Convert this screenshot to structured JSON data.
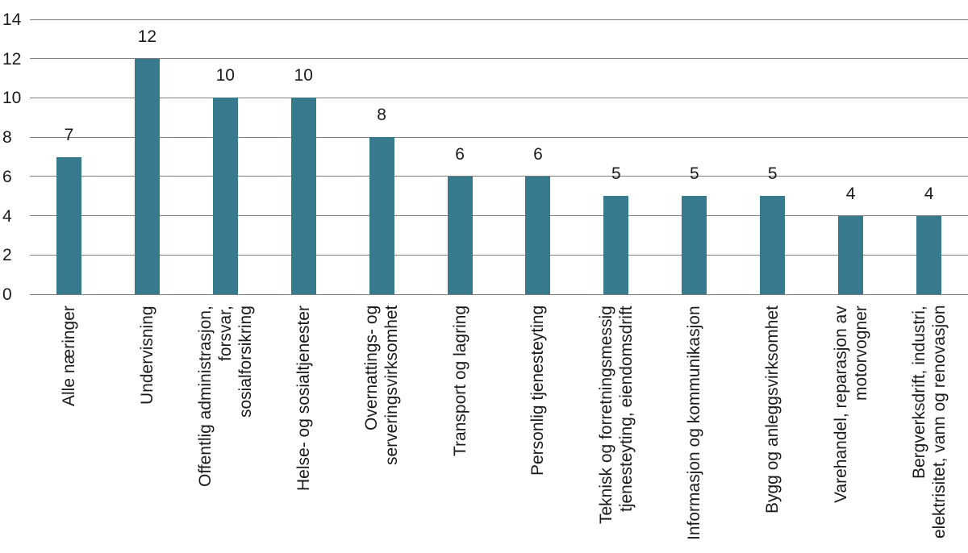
{
  "chart_data": {
    "type": "bar",
    "title": "",
    "xlabel": "",
    "ylabel": "",
    "categories": [
      "Alle næringer",
      "Undervisning",
      "Offentlig administrasjon, forsvar,\nsosialforsikring",
      "Helse- og sosialtjenester",
      "Overnattings- og\nserveringsvirksomhet",
      "Transport og lagring",
      "Personlig tjenesteyting",
      "Teknisk og forretningsmessig\ntjenesteyting, eiendomsdrift",
      "Informasjon og kommunikasjon",
      "Bygg og anleggsvirksomhet",
      "Varehandel, reparasjon av\nmotorvogner",
      "Bergverksdrift, industri,\nelektrisitet, vann og renovasjon"
    ],
    "values": [
      7,
      12,
      10,
      10,
      8,
      6,
      6,
      5,
      5,
      5,
      4,
      4
    ],
    "value_labels": [
      "7",
      "12",
      "10",
      "10",
      "8",
      "6",
      "6",
      "5",
      "5",
      "5",
      "4",
      "4"
    ],
    "yticks": [
      0,
      2,
      4,
      6,
      8,
      10,
      12,
      14
    ],
    "ytick_labels": [
      "0",
      "2",
      "4",
      "6",
      "8",
      "10",
      "12",
      "14"
    ],
    "ylim": [
      0,
      14
    ],
    "grid": true,
    "legend": false,
    "bar_color": "#37798D",
    "gridline_color": "#7f7f7f",
    "text_color": "#1a1a1a"
  }
}
